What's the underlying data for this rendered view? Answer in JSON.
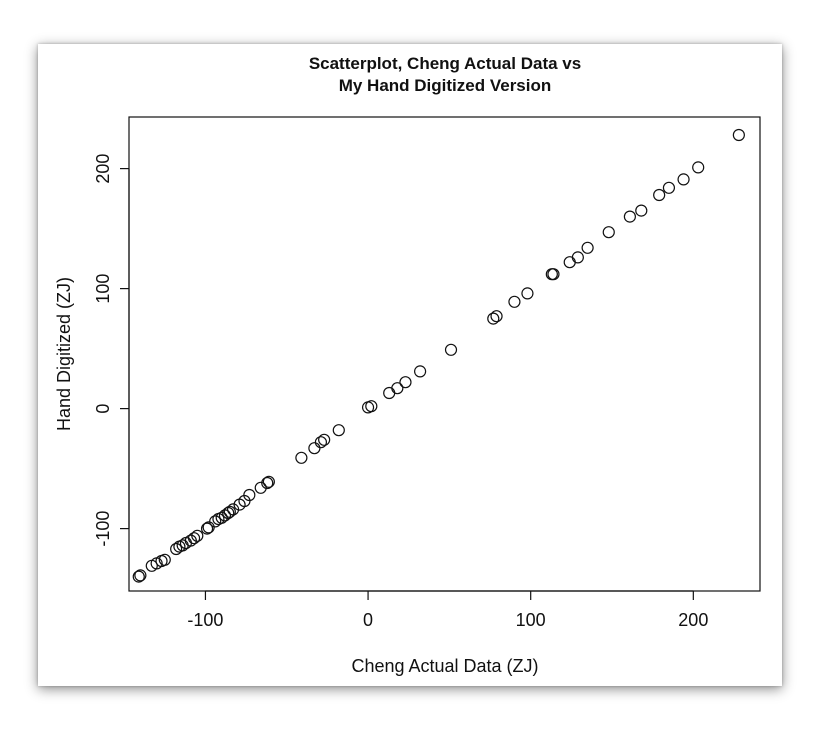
{
  "chart_data": {
    "type": "scatter",
    "title_lines": [
      "Scatterplot, Cheng Actual Data vs",
      "My Hand Digitized Version"
    ],
    "xlabel": "Cheng Actual Data (ZJ)",
    "ylabel": "Hand Digitized (ZJ)",
    "xlim": [
      -147,
      241
    ],
    "ylim": [
      -152,
      243
    ],
    "xticks": [
      -100,
      0,
      100,
      200
    ],
    "xtick_labels": [
      "-100",
      "0",
      "100",
      "200"
    ],
    "yticks": [
      -100,
      0,
      100,
      200
    ],
    "ytick_labels": [
      "-100",
      "0",
      "100",
      "200"
    ],
    "grid": false,
    "marker": "open-circle",
    "color": "#111111",
    "points": [
      {
        "x": -141,
        "y": -140
      },
      {
        "x": -140,
        "y": -139
      },
      {
        "x": -133,
        "y": -131
      },
      {
        "x": -130,
        "y": -129
      },
      {
        "x": -127,
        "y": -127
      },
      {
        "x": -125,
        "y": -126
      },
      {
        "x": -118,
        "y": -117
      },
      {
        "x": -116,
        "y": -115
      },
      {
        "x": -114,
        "y": -114
      },
      {
        "x": -112,
        "y": -112
      },
      {
        "x": -109,
        "y": -110
      },
      {
        "x": -107,
        "y": -108
      },
      {
        "x": -105,
        "y": -106
      },
      {
        "x": -99,
        "y": -100
      },
      {
        "x": -98,
        "y": -99
      },
      {
        "x": -94,
        "y": -94
      },
      {
        "x": -92,
        "y": -92
      },
      {
        "x": -90,
        "y": -91
      },
      {
        "x": -88,
        "y": -89
      },
      {
        "x": -86,
        "y": -87
      },
      {
        "x": -85,
        "y": -86
      },
      {
        "x": -83,
        "y": -84
      },
      {
        "x": -79,
        "y": -80
      },
      {
        "x": -76,
        "y": -77
      },
      {
        "x": -73,
        "y": -72
      },
      {
        "x": -66,
        "y": -66
      },
      {
        "x": -62,
        "y": -62
      },
      {
        "x": -61,
        "y": -61
      },
      {
        "x": -41,
        "y": -41
      },
      {
        "x": -33,
        "y": -33
      },
      {
        "x": -29,
        "y": -28
      },
      {
        "x": -27,
        "y": -26
      },
      {
        "x": -18,
        "y": -18
      },
      {
        "x": 0,
        "y": 1
      },
      {
        "x": 2,
        "y": 2
      },
      {
        "x": 13,
        "y": 13
      },
      {
        "x": 18,
        "y": 17
      },
      {
        "x": 23,
        "y": 22
      },
      {
        "x": 32,
        "y": 31
      },
      {
        "x": 51,
        "y": 49
      },
      {
        "x": 77,
        "y": 75
      },
      {
        "x": 79,
        "y": 77
      },
      {
        "x": 90,
        "y": 89
      },
      {
        "x": 98,
        "y": 96
      },
      {
        "x": 113,
        "y": 112
      },
      {
        "x": 114,
        "y": 112
      },
      {
        "x": 124,
        "y": 122
      },
      {
        "x": 129,
        "y": 126
      },
      {
        "x": 135,
        "y": 134
      },
      {
        "x": 148,
        "y": 147
      },
      {
        "x": 161,
        "y": 160
      },
      {
        "x": 168,
        "y": 165
      },
      {
        "x": 179,
        "y": 178
      },
      {
        "x": 185,
        "y": 184
      },
      {
        "x": 194,
        "y": 191
      },
      {
        "x": 203,
        "y": 201
      },
      {
        "x": 228,
        "y": 228
      }
    ]
  }
}
